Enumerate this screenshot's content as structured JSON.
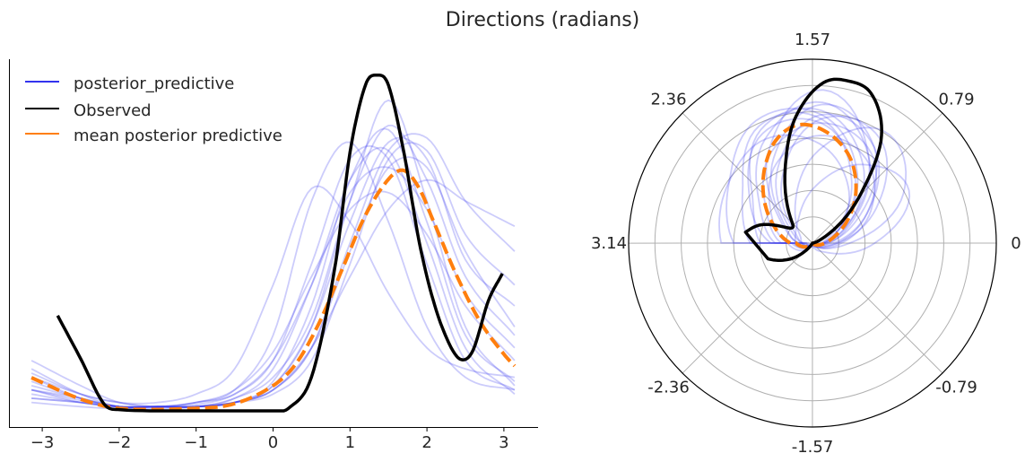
{
  "title": "Directions (radians)",
  "chart_data": [
    {
      "type": "line",
      "title": "",
      "xlabel": "",
      "ylabel": "",
      "xlim": [
        -3.4,
        3.45
      ],
      "ylim": [
        -0.0385,
        0.838
      ],
      "xticks": [
        -3,
        -2,
        -1,
        0,
        1,
        2,
        3
      ],
      "xtick_labels": [
        "−3",
        "−2",
        "−1",
        "0",
        "1",
        "2",
        "3"
      ],
      "legend": {
        "placement": "top-left",
        "entries": [
          {
            "label": "posterior_predictive",
            "color": "#3333ee"
          },
          {
            "label": "Observed",
            "color": "#000000"
          },
          {
            "label": "mean posterior predictive",
            "color": "#ff7f0e"
          }
        ]
      },
      "observed": {
        "x": [
          -2.8,
          -2.5,
          -2.2,
          -2.0,
          -1.0,
          0.0,
          0.2,
          0.5,
          0.8,
          1.0,
          1.2,
          1.35,
          1.5,
          1.7,
          1.9,
          2.1,
          2.3,
          2.45,
          2.6,
          2.8,
          2.98
        ],
        "y": [
          0.227,
          0.124,
          0.017,
          0.003,
          0.0,
          0.0,
          0.006,
          0.081,
          0.338,
          0.616,
          0.776,
          0.8,
          0.776,
          0.616,
          0.402,
          0.252,
          0.156,
          0.122,
          0.145,
          0.263,
          0.327
        ]
      },
      "mean_posterior_predictive": {
        "x": [
          -3.14,
          -2.5,
          -2.0,
          -1.0,
          -0.5,
          0.0,
          0.3,
          0.6,
          0.9,
          1.2,
          1.5,
          1.7,
          1.9,
          2.1,
          2.4,
          2.7,
          3.0,
          3.14
        ],
        "y": [
          0.079,
          0.028,
          0.006,
          0.006,
          0.017,
          0.06,
          0.113,
          0.21,
          0.338,
          0.466,
          0.552,
          0.573,
          0.53,
          0.445,
          0.317,
          0.21,
          0.135,
          0.107
        ]
      },
      "posterior_predictive": {
        "x": [
          -3.14,
          -2.5,
          -2.0,
          -1.5,
          -1.0,
          -0.5,
          0.0,
          0.5,
          1.0,
          1.5,
          2.0,
          2.5,
          3.14
        ],
        "samples": [
          [
            0.03,
            0.02,
            0.01,
            0.01,
            0.01,
            0.02,
            0.06,
            0.2,
            0.5,
            0.74,
            0.5,
            0.2,
            0.06
          ],
          [
            0.08,
            0.04,
            0.02,
            0.02,
            0.04,
            0.1,
            0.3,
            0.53,
            0.45,
            0.28,
            0.15,
            0.1,
            0.08
          ],
          [
            0.05,
            0.03,
            0.01,
            0.01,
            0.02,
            0.05,
            0.18,
            0.5,
            0.64,
            0.45,
            0.2,
            0.08,
            0.05
          ],
          [
            0.1,
            0.04,
            0.01,
            0.01,
            0.01,
            0.02,
            0.05,
            0.15,
            0.32,
            0.48,
            0.55,
            0.5,
            0.44
          ],
          [
            0.08,
            0.03,
            0.01,
            0.01,
            0.01,
            0.02,
            0.05,
            0.15,
            0.4,
            0.62,
            0.65,
            0.5,
            0.38
          ],
          [
            0.05,
            0.02,
            0.01,
            0.01,
            0.01,
            0.03,
            0.08,
            0.22,
            0.5,
            0.68,
            0.55,
            0.32,
            0.18
          ],
          [
            0.02,
            0.01,
            0.005,
            0.005,
            0.01,
            0.03,
            0.1,
            0.3,
            0.55,
            0.62,
            0.4,
            0.15,
            0.04
          ],
          [
            0.12,
            0.06,
            0.02,
            0.01,
            0.01,
            0.02,
            0.05,
            0.15,
            0.38,
            0.58,
            0.58,
            0.38,
            0.2
          ],
          [
            0.04,
            0.02,
            0.01,
            0.01,
            0.02,
            0.04,
            0.12,
            0.35,
            0.6,
            0.6,
            0.35,
            0.12,
            0.05
          ],
          [
            0.06,
            0.03,
            0.01,
            0.01,
            0.01,
            0.02,
            0.06,
            0.2,
            0.45,
            0.64,
            0.6,
            0.36,
            0.25
          ],
          [
            0.09,
            0.04,
            0.02,
            0.01,
            0.02,
            0.05,
            0.14,
            0.32,
            0.48,
            0.52,
            0.42,
            0.25,
            0.12
          ],
          [
            0.03,
            0.02,
            0.01,
            0.01,
            0.01,
            0.02,
            0.07,
            0.25,
            0.55,
            0.67,
            0.45,
            0.18,
            0.07
          ],
          [
            0.07,
            0.03,
            0.01,
            0.01,
            0.01,
            0.02,
            0.04,
            0.12,
            0.35,
            0.6,
            0.62,
            0.42,
            0.3
          ],
          [
            0.05,
            0.025,
            0.01,
            0.01,
            0.015,
            0.04,
            0.12,
            0.3,
            0.52,
            0.58,
            0.48,
            0.28,
            0.15
          ]
        ]
      }
    },
    {
      "type": "line",
      "projection": "polar",
      "rlim": [
        0,
        0.886
      ],
      "grid": true,
      "angle_tick_labels": [
        {
          "angle": 0,
          "label": "0"
        },
        {
          "angle": 0.785,
          "label": "0.79"
        },
        {
          "angle": 1.571,
          "label": "1.57"
        },
        {
          "angle": 2.356,
          "label": "2.36"
        },
        {
          "angle": 3.142,
          "label": "3.14"
        },
        {
          "angle": -2.356,
          "label": "-2.36"
        },
        {
          "angle": -1.571,
          "label": "-1.57"
        },
        {
          "angle": -0.785,
          "label": "-0.79"
        }
      ],
      "note_series": "same series as the linear plot, drawn in polar coordinates"
    }
  ]
}
